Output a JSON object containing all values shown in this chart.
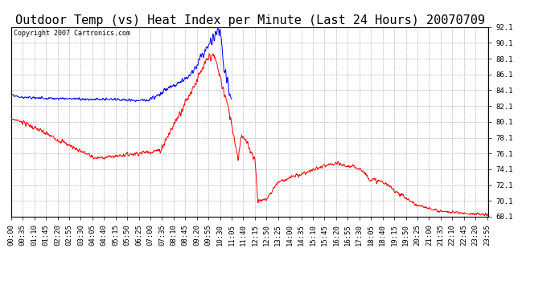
{
  "title": "Outdoor Temp (vs) Heat Index per Minute (Last 24 Hours) 20070709",
  "copyright_text": "Copyright 2007 Cartronics.com",
  "ylim": [
    68.1,
    92.1
  ],
  "yticks": [
    68.1,
    70.1,
    72.1,
    74.1,
    76.1,
    78.1,
    80.1,
    82.1,
    84.1,
    86.1,
    88.1,
    90.1,
    92.1
  ],
  "x_labels": [
    "00:00",
    "00:35",
    "01:10",
    "01:45",
    "02:20",
    "02:55",
    "03:30",
    "04:05",
    "04:40",
    "05:15",
    "05:50",
    "06:25",
    "07:00",
    "07:35",
    "08:10",
    "08:45",
    "09:20",
    "09:55",
    "10:30",
    "11:05",
    "11:40",
    "12:15",
    "12:50",
    "13:25",
    "14:00",
    "14:35",
    "15:10",
    "15:45",
    "16:20",
    "16:55",
    "17:30",
    "18:05",
    "18:40",
    "19:15",
    "19:50",
    "20:25",
    "21:00",
    "21:35",
    "22:10",
    "22:45",
    "23:20",
    "23:55"
  ],
  "background_color": "#ffffff",
  "grid_color": "#aaaaaa",
  "line_color_temp": "#ff0000",
  "line_color_heat": "#0000ff",
  "title_fontsize": 11,
  "tick_fontsize": 6.5,
  "copyright_fontsize": 6
}
